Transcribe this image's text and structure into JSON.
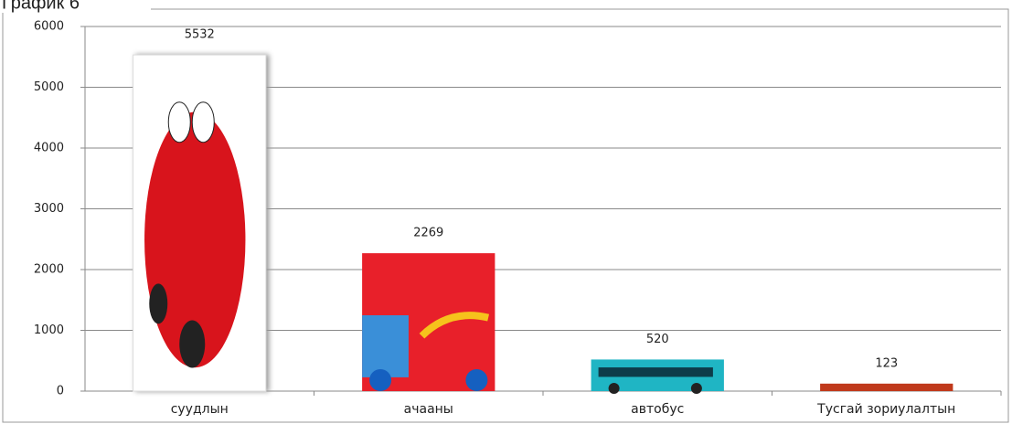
{
  "chart_data": {
    "type": "bar",
    "title": "График 6",
    "categories": [
      "суудлын",
      "ачааны",
      "автобус",
      "Тусгай зориулалтын"
    ],
    "values": [
      5532,
      2269,
      520,
      123
    ],
    "colors": [
      "#ffffff",
      "#e8202a",
      "#1fb5c4",
      "#c0391b"
    ],
    "ylim": [
      0,
      6000
    ],
    "yticks": [
      0,
      1000,
      2000,
      3000,
      4000,
      5000,
      6000
    ],
    "grid": true
  }
}
